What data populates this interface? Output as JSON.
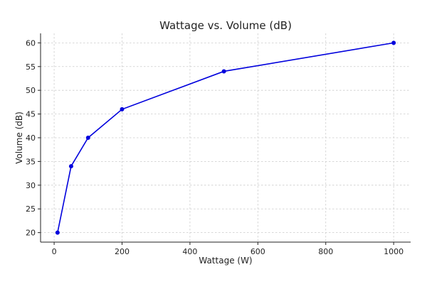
{
  "chart_data": {
    "type": "line",
    "title": "Wattage vs. Volume (dB)",
    "xlabel": "Wattage (W)",
    "ylabel": "Volume (dB)",
    "xlim": [
      -40,
      1050
    ],
    "ylim": [
      18,
      62
    ],
    "xticks": [
      0,
      200,
      400,
      600,
      800,
      1000
    ],
    "yticks": [
      20,
      25,
      30,
      35,
      40,
      45,
      50,
      55,
      60
    ],
    "grid": true,
    "series": [
      {
        "color": "#0000dd",
        "marker": "circle",
        "x": [
          10,
          50,
          100,
          200,
          500,
          1000
        ],
        "y": [
          20,
          34,
          40,
          46,
          54,
          60
        ]
      }
    ]
  }
}
